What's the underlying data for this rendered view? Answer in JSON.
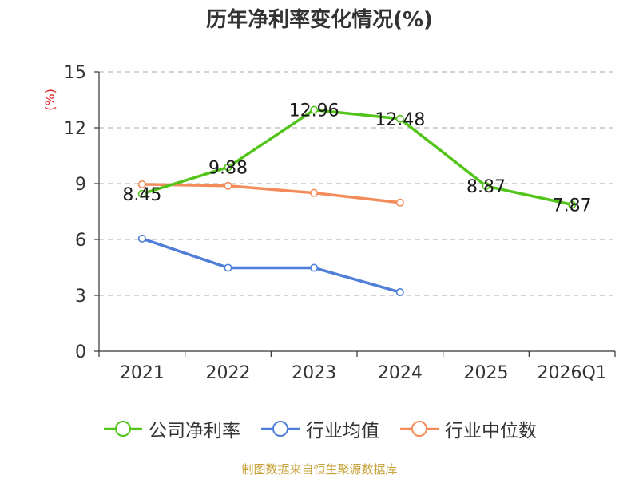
{
  "chart_data": {
    "type": "line",
    "title": "历年净利率变化情况(%)",
    "ylabel": "(%)",
    "xlabel": "",
    "categories": [
      "2021",
      "2022",
      "2023",
      "2024",
      "2025",
      "2026Q1"
    ],
    "ylim": [
      0,
      15
    ],
    "yticks": [
      0,
      3,
      6,
      9,
      12,
      15
    ],
    "grid": true,
    "legend_position": "bottom",
    "series": [
      {
        "name": "公司净利率",
        "color": "#52c41a",
        "values": [
          8.45,
          9.88,
          12.96,
          12.48,
          8.87,
          7.87
        ],
        "labels": [
          "8.45",
          "9.88",
          "12.96",
          "12.48",
          "8.87",
          "7.87"
        ]
      },
      {
        "name": "行业均值",
        "color": "#4f7fd9",
        "values": [
          6.05,
          4.48,
          4.48,
          3.17,
          null,
          null
        ]
      },
      {
        "name": "行业中位数",
        "color": "#f48b5a",
        "values": [
          8.96,
          8.88,
          8.5,
          7.98,
          null,
          null
        ]
      }
    ]
  },
  "source": {
    "text": "制图数据来自恒生聚源数据库",
    "color": "#c8a23a"
  },
  "colors": {
    "axis": "#333333",
    "grid": "#bbbbbb",
    "ylabel": "#e02020"
  }
}
